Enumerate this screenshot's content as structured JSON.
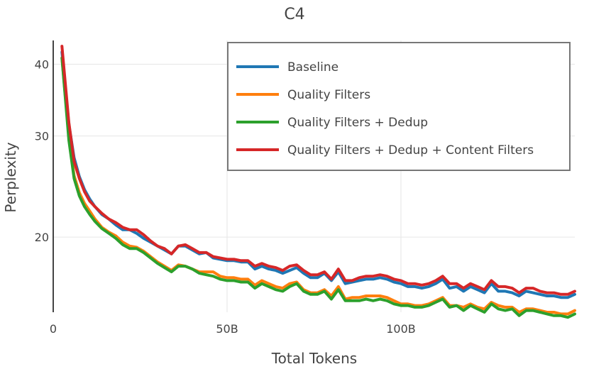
{
  "chart_data": {
    "type": "line",
    "title": "C4",
    "xlabel": "Total Tokens",
    "ylabel": "Perplexity",
    "y_scale": "log",
    "xlim": [
      0,
      150
    ],
    "ylim": [
      14.8,
      44
    ],
    "x_ticks": [
      {
        "value": 0,
        "label": "0"
      },
      {
        "value": 50,
        "label": "50B"
      },
      {
        "value": 100,
        "label": "100B"
      }
    ],
    "y_ticks": [
      {
        "value": 20,
        "label": "20"
      },
      {
        "value": 30,
        "label": "30"
      },
      {
        "value": 40,
        "label": "40"
      }
    ],
    "grid": true,
    "legend_position": "top-right",
    "x": [
      2.5,
      4.5,
      6,
      7.5,
      9,
      10.5,
      12,
      14,
      16,
      18,
      20,
      22,
      24,
      26,
      28,
      30,
      32,
      34,
      36,
      38,
      40,
      42,
      44,
      46,
      48,
      50,
      52,
      54,
      56,
      58,
      60,
      62,
      64,
      66,
      68,
      70,
      72,
      74,
      76,
      78,
      80,
      82,
      84,
      86,
      88,
      90,
      92,
      94,
      96,
      98,
      100,
      102,
      104,
      106,
      108,
      110,
      112,
      114,
      116,
      118,
      120,
      122,
      124,
      126,
      128,
      130,
      132,
      134,
      136,
      138,
      140,
      142,
      144,
      146,
      148,
      150
    ],
    "series": [
      {
        "name": "Baseline",
        "color": "#1f77b4",
        "values": [
          42,
          31.5,
          27.5,
          25.5,
          24.2,
          23.3,
          22.6,
          21.9,
          21.5,
          21,
          20.6,
          20.6,
          20.3,
          19.9,
          19.6,
          19.3,
          19.0,
          18.7,
          19.3,
          19.3,
          19.0,
          18.7,
          18.8,
          18.4,
          18.3,
          18.2,
          18.2,
          18.1,
          18.1,
          17.6,
          17.8,
          17.6,
          17.5,
          17.3,
          17.5,
          17.7,
          17.3,
          17.0,
          17.0,
          17.3,
          16.8,
          17.4,
          16.6,
          16.7,
          16.8,
          16.9,
          16.9,
          17.0,
          16.9,
          16.7,
          16.6,
          16.4,
          16.4,
          16.3,
          16.4,
          16.6,
          16.9,
          16.3,
          16.4,
          16.1,
          16.4,
          16.2,
          16.0,
          16.6,
          16.1,
          16.1,
          16.0,
          15.8,
          16.1,
          16.0,
          15.9,
          15.8,
          15.8,
          15.7,
          15.7,
          15.9
        ]
      },
      {
        "name": "Quality Filters",
        "color": "#ff7f0e",
        "values": [
          41,
          30,
          25.6,
          23.9,
          22.9,
          22.2,
          21.5,
          20.8,
          20.4,
          20.1,
          19.6,
          19.3,
          19.2,
          18.9,
          18.5,
          18.1,
          17.8,
          17.5,
          17.9,
          17.8,
          17.6,
          17.4,
          17.4,
          17.4,
          17.1,
          17.0,
          17.0,
          16.9,
          16.9,
          16.5,
          16.8,
          16.6,
          16.4,
          16.3,
          16.6,
          16.7,
          16.2,
          16.0,
          16.0,
          16.2,
          15.8,
          16.4,
          15.6,
          15.7,
          15.7,
          15.8,
          15.8,
          15.8,
          15.7,
          15.5,
          15.3,
          15.3,
          15.2,
          15.2,
          15.3,
          15.5,
          15.7,
          15.2,
          15.2,
          15.1,
          15.3,
          15.1,
          15.0,
          15.4,
          15.2,
          15.1,
          15.1,
          14.8,
          15.0,
          15.0,
          14.9,
          14.8,
          14.8,
          14.7,
          14.7,
          14.9
        ]
      },
      {
        "name": "Quality Filters + Dedup",
        "color": "#2ca02c",
        "values": [
          41,
          29.5,
          25.3,
          23.6,
          22.6,
          21.9,
          21.3,
          20.7,
          20.3,
          19.9,
          19.4,
          19.1,
          19.1,
          18.8,
          18.4,
          18.0,
          17.7,
          17.4,
          17.8,
          17.8,
          17.6,
          17.3,
          17.2,
          17.1,
          16.9,
          16.8,
          16.8,
          16.7,
          16.7,
          16.3,
          16.6,
          16.4,
          16.2,
          16.1,
          16.4,
          16.6,
          16.1,
          15.9,
          15.9,
          16.1,
          15.6,
          16.2,
          15.5,
          15.5,
          15.5,
          15.6,
          15.5,
          15.6,
          15.5,
          15.3,
          15.2,
          15.2,
          15.1,
          15.1,
          15.2,
          15.4,
          15.6,
          15.1,
          15.2,
          14.9,
          15.2,
          15.0,
          14.8,
          15.3,
          15.0,
          14.9,
          15.0,
          14.6,
          14.9,
          14.9,
          14.8,
          14.7,
          14.6,
          14.6,
          14.5,
          14.7
        ]
      },
      {
        "name": "Quality Filters + Dedup + Content Filters",
        "color": "#d62728",
        "values": [
          43,
          31.7,
          27.1,
          25.3,
          24.0,
          23.1,
          22.6,
          22.0,
          21.5,
          21.2,
          20.8,
          20.6,
          20.6,
          20.2,
          19.7,
          19.3,
          19.1,
          18.7,
          19.3,
          19.4,
          19.1,
          18.8,
          18.8,
          18.5,
          18.4,
          18.3,
          18.3,
          18.2,
          18.2,
          17.8,
          18.0,
          17.8,
          17.7,
          17.5,
          17.8,
          17.9,
          17.5,
          17.2,
          17.2,
          17.4,
          16.9,
          17.6,
          16.8,
          16.8,
          17.0,
          17.1,
          17.1,
          17.2,
          17.1,
          16.9,
          16.8,
          16.6,
          16.6,
          16.5,
          16.6,
          16.8,
          17.1,
          16.6,
          16.6,
          16.3,
          16.6,
          16.4,
          16.2,
          16.8,
          16.4,
          16.4,
          16.3,
          16.0,
          16.3,
          16.3,
          16.1,
          16.0,
          16.0,
          15.9,
          15.9,
          16.1
        ]
      }
    ]
  }
}
